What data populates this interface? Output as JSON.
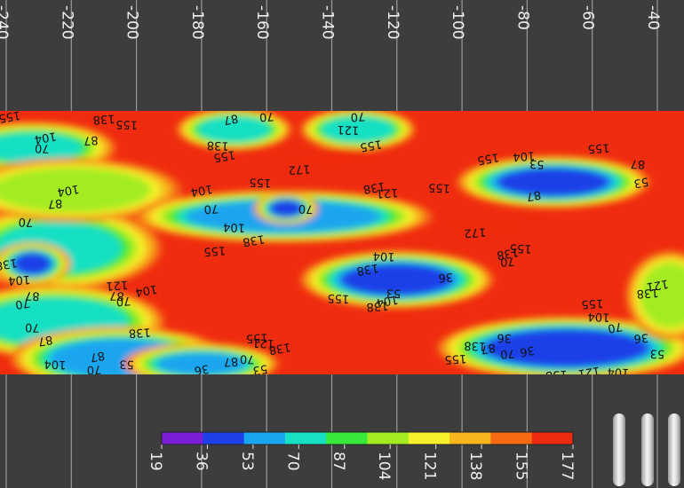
{
  "chart_data": {
    "type": "heatmap",
    "title": "",
    "xlabel": "",
    "ylabel": "",
    "x_ticks": [
      -240,
      -220,
      -200,
      -180,
      -160,
      -140,
      -120,
      -100,
      -80,
      -60,
      -40
    ],
    "xlim": [
      -240,
      -35
    ],
    "colorbar": {
      "levels": [
        19,
        36,
        53,
        70,
        87,
        104,
        121,
        138,
        155,
        177
      ],
      "colors": [
        "#7a1fd6",
        "#1f3fe8",
        "#1aa5ef",
        "#18e0c4",
        "#38e83a",
        "#a4ec22",
        "#f6f02a",
        "#f7b61e",
        "#f66a14",
        "#ef2b10"
      ]
    },
    "background_level": 165,
    "features": [
      {
        "x": -224,
        "y": 0.52,
        "rx": 28,
        "ry": 0.14,
        "value": 70
      },
      {
        "x": -232,
        "y": 0.58,
        "rx": 8,
        "ry": 0.06,
        "value": 36
      },
      {
        "x": -232,
        "y": 0.14,
        "rx": 22,
        "ry": 0.08,
        "value": 70
      },
      {
        "x": -225,
        "y": 0.8,
        "rx": 30,
        "ry": 0.12,
        "value": 60
      },
      {
        "x": -220,
        "y": 0.3,
        "rx": 30,
        "ry": 0.1,
        "value": 100
      },
      {
        "x": -205,
        "y": 0.94,
        "rx": 30,
        "ry": 0.1,
        "value": 40
      },
      {
        "x": -180,
        "y": 0.96,
        "rx": 20,
        "ry": 0.06,
        "value": 53
      },
      {
        "x": -170,
        "y": 0.07,
        "rx": 14,
        "ry": 0.06,
        "value": 60
      },
      {
        "x": -132,
        "y": 0.07,
        "rx": 14,
        "ry": 0.06,
        "value": 60
      },
      {
        "x": -155,
        "y": 0.4,
        "rx": 42,
        "ry": 0.08,
        "value": 40
      },
      {
        "x": -154,
        "y": 0.37,
        "rx": 6,
        "ry": 0.04,
        "value": 25
      },
      {
        "x": -120,
        "y": 0.64,
        "rx": 26,
        "ry": 0.09,
        "value": 36
      },
      {
        "x": -72,
        "y": 0.27,
        "rx": 26,
        "ry": 0.08,
        "value": 36
      },
      {
        "x": -68,
        "y": 0.9,
        "rx": 36,
        "ry": 0.1,
        "value": 30
      },
      {
        "x": -36,
        "y": 0.7,
        "rx": 10,
        "ry": 0.15,
        "value": 90
      },
      {
        "x": -140,
        "y": 0.19,
        "rx": 14,
        "ry": 0.03,
        "value": 175
      },
      {
        "x": -93,
        "y": 0.44,
        "rx": 14,
        "ry": 0.03,
        "value": 175
      }
    ],
    "contour_labels": [
      {
        "x": -239,
        "y": 0.02,
        "text": "155"
      },
      {
        "x": -210,
        "y": 0.03,
        "text": "138"
      },
      {
        "x": -203,
        "y": 0.05,
        "text": "155"
      },
      {
        "x": -228,
        "y": 0.1,
        "text": "104"
      },
      {
        "x": -214,
        "y": 0.11,
        "text": "87"
      },
      {
        "x": -229,
        "y": 0.14,
        "text": "70"
      },
      {
        "x": -171,
        "y": 0.03,
        "text": "87"
      },
      {
        "x": -160,
        "y": 0.02,
        "text": "70"
      },
      {
        "x": -175,
        "y": 0.13,
        "text": "138"
      },
      {
        "x": -173,
        "y": 0.17,
        "text": "155"
      },
      {
        "x": -132,
        "y": 0.02,
        "text": "70"
      },
      {
        "x": -135,
        "y": 0.07,
        "text": "121"
      },
      {
        "x": -128,
        "y": 0.13,
        "text": "155"
      },
      {
        "x": -150,
        "y": 0.22,
        "text": "172"
      },
      {
        "x": -162,
        "y": 0.27,
        "text": "155"
      },
      {
        "x": -221,
        "y": 0.3,
        "text": "104"
      },
      {
        "x": -225,
        "y": 0.35,
        "text": "87"
      },
      {
        "x": -234,
        "y": 0.42,
        "text": "70"
      },
      {
        "x": -180,
        "y": 0.3,
        "text": "104"
      },
      {
        "x": -177,
        "y": 0.37,
        "text": "70"
      },
      {
        "x": -170,
        "y": 0.44,
        "text": "104"
      },
      {
        "x": -164,
        "y": 0.49,
        "text": "138"
      },
      {
        "x": -176,
        "y": 0.53,
        "text": "155"
      },
      {
        "x": -148,
        "y": 0.37,
        "text": "70"
      },
      {
        "x": -127,
        "y": 0.29,
        "text": "138"
      },
      {
        "x": -123,
        "y": 0.31,
        "text": "121"
      },
      {
        "x": -107,
        "y": 0.29,
        "text": "155"
      },
      {
        "x": -92,
        "y": 0.18,
        "text": "155"
      },
      {
        "x": -81,
        "y": 0.17,
        "text": "104"
      },
      {
        "x": -77,
        "y": 0.2,
        "text": "53"
      },
      {
        "x": -78,
        "y": 0.32,
        "text": "87"
      },
      {
        "x": -58,
        "y": 0.14,
        "text": "155"
      },
      {
        "x": -46,
        "y": 0.2,
        "text": "87"
      },
      {
        "x": -45,
        "y": 0.27,
        "text": "53"
      },
      {
        "x": -96,
        "y": 0.46,
        "text": "172"
      },
      {
        "x": -82,
        "y": 0.52,
        "text": "155"
      },
      {
        "x": -86,
        "y": 0.54,
        "text": "138"
      },
      {
        "x": -86,
        "y": 0.57,
        "text": "70"
      },
      {
        "x": -124,
        "y": 0.55,
        "text": "104"
      },
      {
        "x": -129,
        "y": 0.6,
        "text": "138"
      },
      {
        "x": -105,
        "y": 0.63,
        "text": "36"
      },
      {
        "x": -121,
        "y": 0.69,
        "text": "53"
      },
      {
        "x": -123,
        "y": 0.72,
        "text": "104"
      },
      {
        "x": -126,
        "y": 0.74,
        "text": "138"
      },
      {
        "x": -138,
        "y": 0.71,
        "text": "155"
      },
      {
        "x": -240,
        "y": 0.58,
        "text": "138"
      },
      {
        "x": -236,
        "y": 0.64,
        "text": "104"
      },
      {
        "x": -232,
        "y": 0.7,
        "text": "87"
      },
      {
        "x": -235,
        "y": 0.73,
        "text": "70"
      },
      {
        "x": -206,
        "y": 0.66,
        "text": "121"
      },
      {
        "x": -206,
        "y": 0.7,
        "text": "87"
      },
      {
        "x": -197,
        "y": 0.68,
        "text": "104"
      },
      {
        "x": -204,
        "y": 0.72,
        "text": "70"
      },
      {
        "x": -232,
        "y": 0.82,
        "text": "70"
      },
      {
        "x": -228,
        "y": 0.87,
        "text": "87"
      },
      {
        "x": -199,
        "y": 0.84,
        "text": "138"
      },
      {
        "x": -225,
        "y": 0.96,
        "text": "104"
      },
      {
        "x": -212,
        "y": 0.93,
        "text": "87"
      },
      {
        "x": -213,
        "y": 0.98,
        "text": "70"
      },
      {
        "x": -203,
        "y": 0.96,
        "text": "53"
      },
      {
        "x": -180,
        "y": 0.98,
        "text": "36"
      },
      {
        "x": -171,
        "y": 0.95,
        "text": "87"
      },
      {
        "x": -166,
        "y": 0.94,
        "text": "70"
      },
      {
        "x": -162,
        "y": 0.98,
        "text": "53"
      },
      {
        "x": -163,
        "y": 0.86,
        "text": "155"
      },
      {
        "x": -161,
        "y": 0.88,
        "text": "121"
      },
      {
        "x": -156,
        "y": 0.9,
        "text": "138"
      },
      {
        "x": -102,
        "y": 0.94,
        "text": "155"
      },
      {
        "x": -96,
        "y": 0.89,
        "text": "138"
      },
      {
        "x": -92,
        "y": 0.9,
        "text": "87"
      },
      {
        "x": -86,
        "y": 0.92,
        "text": "70"
      },
      {
        "x": -87,
        "y": 0.86,
        "text": "36"
      },
      {
        "x": -80,
        "y": 0.91,
        "text": "36"
      },
      {
        "x": -60,
        "y": 0.73,
        "text": "155"
      },
      {
        "x": -58,
        "y": 0.78,
        "text": "104"
      },
      {
        "x": -53,
        "y": 0.82,
        "text": "70"
      },
      {
        "x": -45,
        "y": 0.86,
        "text": "36"
      },
      {
        "x": -40,
        "y": 0.92,
        "text": "53"
      },
      {
        "x": -61,
        "y": 0.99,
        "text": "121"
      },
      {
        "x": -71,
        "y": 1.0,
        "text": "138"
      },
      {
        "x": -52,
        "y": 0.99,
        "text": "104"
      },
      {
        "x": -40,
        "y": 0.66,
        "text": "121"
      },
      {
        "x": -43,
        "y": 0.69,
        "text": "138"
      }
    ]
  }
}
